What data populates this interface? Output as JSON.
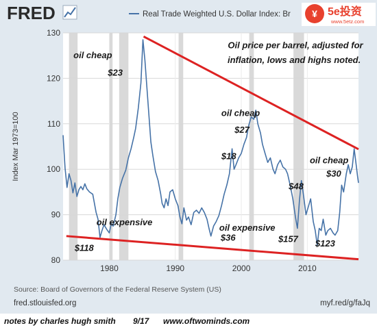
{
  "header": {
    "logo_text": "FRED",
    "legend_label": "Real Trade Weighted U.S. Dollar Index: Br",
    "watermark": "5e投资",
    "watermark_url": "www.5etz.com"
  },
  "footer": {
    "source": "Source: Board of Governors of the Federal Reserve System (US)",
    "site": "fred.stlouisfed.org",
    "short_link": "myf.red/g/faJq"
  },
  "notes": {
    "author": "notes by charles hugh smith",
    "date": "9/17",
    "site": "www.oftwominds.com"
  },
  "colors": {
    "series": "#4572a7",
    "trendline": "#dd2222",
    "recession": "#d9d9d9",
    "frame": "#e1e9f0",
    "annotation": "#1a1a1a"
  },
  "chart_data": {
    "type": "line",
    "ylabel": "Index Mar 1973=100",
    "xlim": [
      1973,
      2017.75
    ],
    "ylim": [
      80,
      130
    ],
    "y_ticks": [
      80,
      90,
      100,
      110,
      120,
      130
    ],
    "x_ticks": [
      1980,
      1990,
      2000,
      2010
    ],
    "grid": true,
    "legend_position": "top",
    "series": [
      {
        "name": "Real Trade Weighted U.S. Dollar Index: Broad",
        "color": "#4572a7",
        "points": [
          [
            1973.0,
            107.5
          ],
          [
            1973.3,
            100.3
          ],
          [
            1973.6,
            96.0
          ],
          [
            1973.9,
            99.0
          ],
          [
            1974.2,
            97.5
          ],
          [
            1974.5,
            94.8
          ],
          [
            1974.8,
            97.0
          ],
          [
            1975.1,
            94.0
          ],
          [
            1975.4,
            95.5
          ],
          [
            1975.7,
            96.2
          ],
          [
            1976.0,
            95.5
          ],
          [
            1976.3,
            96.8
          ],
          [
            1976.6,
            95.7
          ],
          [
            1977.0,
            95.0
          ],
          [
            1977.5,
            94.5
          ],
          [
            1978.0,
            90.5
          ],
          [
            1978.3,
            89.0
          ],
          [
            1978.6,
            85.0
          ],
          [
            1978.9,
            86.5
          ],
          [
            1979.2,
            87.8
          ],
          [
            1979.6,
            86.8
          ],
          [
            1980.0,
            86.0
          ],
          [
            1980.3,
            88.0
          ],
          [
            1980.6,
            87.5
          ],
          [
            1981.0,
            90.0
          ],
          [
            1981.3,
            93.5
          ],
          [
            1981.6,
            96.0
          ],
          [
            1982.0,
            98.0
          ],
          [
            1982.5,
            99.8
          ],
          [
            1982.9,
            102.5
          ],
          [
            1983.3,
            104.5
          ],
          [
            1983.7,
            107.0
          ],
          [
            1984.0,
            109.0
          ],
          [
            1984.4,
            113.5
          ],
          [
            1984.8,
            119.0
          ],
          [
            1985.1,
            128.5
          ],
          [
            1985.4,
            124.0
          ],
          [
            1985.7,
            118.0
          ],
          [
            1986.0,
            112.0
          ],
          [
            1986.3,
            106.0
          ],
          [
            1986.6,
            103.0
          ],
          [
            1987.0,
            99.5
          ],
          [
            1987.4,
            97.5
          ],
          [
            1987.8,
            94.5
          ],
          [
            1988.0,
            92.5
          ],
          [
            1988.3,
            91.5
          ],
          [
            1988.6,
            93.5
          ],
          [
            1988.9,
            92.0
          ],
          [
            1989.2,
            95.0
          ],
          [
            1989.6,
            95.5
          ],
          [
            1990.0,
            93.5
          ],
          [
            1990.4,
            92.0
          ],
          [
            1990.7,
            89.5
          ],
          [
            1991.0,
            88.0
          ],
          [
            1991.3,
            91.5
          ],
          [
            1991.7,
            88.8
          ],
          [
            1992.0,
            89.5
          ],
          [
            1992.4,
            87.8
          ],
          [
            1992.8,
            90.5
          ],
          [
            1993.2,
            91.0
          ],
          [
            1993.6,
            90.3
          ],
          [
            1994.0,
            91.5
          ],
          [
            1994.4,
            90.5
          ],
          [
            1994.8,
            89.0
          ],
          [
            1995.1,
            87.0
          ],
          [
            1995.4,
            85.3
          ],
          [
            1995.8,
            87.5
          ],
          [
            1996.2,
            88.5
          ],
          [
            1996.6,
            89.8
          ],
          [
            1997.0,
            92.0
          ],
          [
            1997.4,
            94.5
          ],
          [
            1997.8,
            96.5
          ],
          [
            1998.2,
            99.0
          ],
          [
            1998.6,
            104.5
          ],
          [
            1998.9,
            100.0
          ],
          [
            1999.2,
            101.0
          ],
          [
            1999.6,
            102.5
          ],
          [
            2000.0,
            103.5
          ],
          [
            2000.4,
            105.5
          ],
          [
            2000.8,
            107.0
          ],
          [
            2001.1,
            109.5
          ],
          [
            2001.5,
            111.5
          ],
          [
            2001.9,
            111.0
          ],
          [
            2002.2,
            113.0
          ],
          [
            2002.5,
            110.0
          ],
          [
            2002.9,
            108.0
          ],
          [
            2003.2,
            105.5
          ],
          [
            2003.6,
            103.5
          ],
          [
            2004.0,
            101.5
          ],
          [
            2004.4,
            102.5
          ],
          [
            2004.8,
            100.0
          ],
          [
            2005.1,
            99.0
          ],
          [
            2005.5,
            101.0
          ],
          [
            2005.9,
            102.0
          ],
          [
            2006.3,
            100.5
          ],
          [
            2006.7,
            100.0
          ],
          [
            2007.0,
            99.0
          ],
          [
            2007.4,
            96.5
          ],
          [
            2007.8,
            93.5
          ],
          [
            2008.2,
            89.5
          ],
          [
            2008.5,
            87.0
          ],
          [
            2008.8,
            93.0
          ],
          [
            2009.1,
            97.5
          ],
          [
            2009.4,
            94.5
          ],
          [
            2009.8,
            90.0
          ],
          [
            2010.2,
            92.0
          ],
          [
            2010.5,
            93.5
          ],
          [
            2010.9,
            88.5
          ],
          [
            2011.2,
            86.5
          ],
          [
            2011.5,
            83.3
          ],
          [
            2011.8,
            87.0
          ],
          [
            2012.1,
            86.5
          ],
          [
            2012.4,
            89.0
          ],
          [
            2012.8,
            85.5
          ],
          [
            2013.1,
            86.5
          ],
          [
            2013.5,
            87.0
          ],
          [
            2013.9,
            86.0
          ],
          [
            2014.2,
            85.5
          ],
          [
            2014.6,
            86.5
          ],
          [
            2014.9,
            90.5
          ],
          [
            2015.2,
            96.5
          ],
          [
            2015.5,
            95.0
          ],
          [
            2015.9,
            99.0
          ],
          [
            2016.2,
            101.0
          ],
          [
            2016.5,
            99.0
          ],
          [
            2016.8,
            100.5
          ],
          [
            2017.1,
            104.5
          ],
          [
            2017.4,
            101.0
          ],
          [
            2017.6,
            98.5
          ],
          [
            2017.75,
            97.0
          ]
        ]
      }
    ],
    "recessions": [
      [
        1973.9,
        1975.2
      ],
      [
        1980.0,
        1980.5
      ],
      [
        1981.5,
        1982.9
      ],
      [
        1990.5,
        1991.2
      ],
      [
        2001.2,
        2001.9
      ],
      [
        2007.9,
        2009.5
      ]
    ],
    "trendlines": [
      {
        "from": [
          1985.2,
          129.2
        ],
        "to": [
          2017.75,
          104.4
        ]
      },
      {
        "from": [
          1973.5,
          85.3
        ],
        "to": [
          2017.75,
          80.2
        ]
      }
    ],
    "annotations": [
      {
        "text": "oil cheap",
        "x": 1977.5,
        "y": 124.4,
        "bold": true
      },
      {
        "text": "$23",
        "x": 1980.9,
        "y": 120.6,
        "bold": true
      },
      {
        "text": "Oil price per barrel, adjusted for",
        "x": 2008.2,
        "y": 126.6,
        "bold": true
      },
      {
        "text": "inflation, lows and highs noted.",
        "x": 2008.0,
        "y": 123.4,
        "bold": true
      },
      {
        "text": "oil cheap",
        "x": 1999.9,
        "y": 111.7,
        "bold": true
      },
      {
        "text": "$27",
        "x": 2000.1,
        "y": 108.0,
        "bold": true
      },
      {
        "text": "$18",
        "x": 1998.1,
        "y": 102.2,
        "bold": true
      },
      {
        "text": "oil cheap",
        "x": 2013.3,
        "y": 101.3,
        "bold": true
      },
      {
        "text": "$30",
        "x": 2014.0,
        "y": 98.4,
        "bold": true
      },
      {
        "text": "$48",
        "x": 2008.3,
        "y": 95.6,
        "bold": true
      },
      {
        "text": "oil expensive",
        "x": 1982.3,
        "y": 87.7,
        "bold": true
      },
      {
        "text": "oil expensive",
        "x": 2000.9,
        "y": 86.5,
        "bold": true
      },
      {
        "text": "$36",
        "x": 1998.0,
        "y": 84.3,
        "bold": true
      },
      {
        "text": "$157",
        "x": 2007.1,
        "y": 84.0,
        "bold": true
      },
      {
        "text": "$118",
        "x": 1976.2,
        "y": 82.0,
        "bold": true
      },
      {
        "text": "$123",
        "x": 2012.7,
        "y": 83.0,
        "bold": true
      }
    ]
  }
}
